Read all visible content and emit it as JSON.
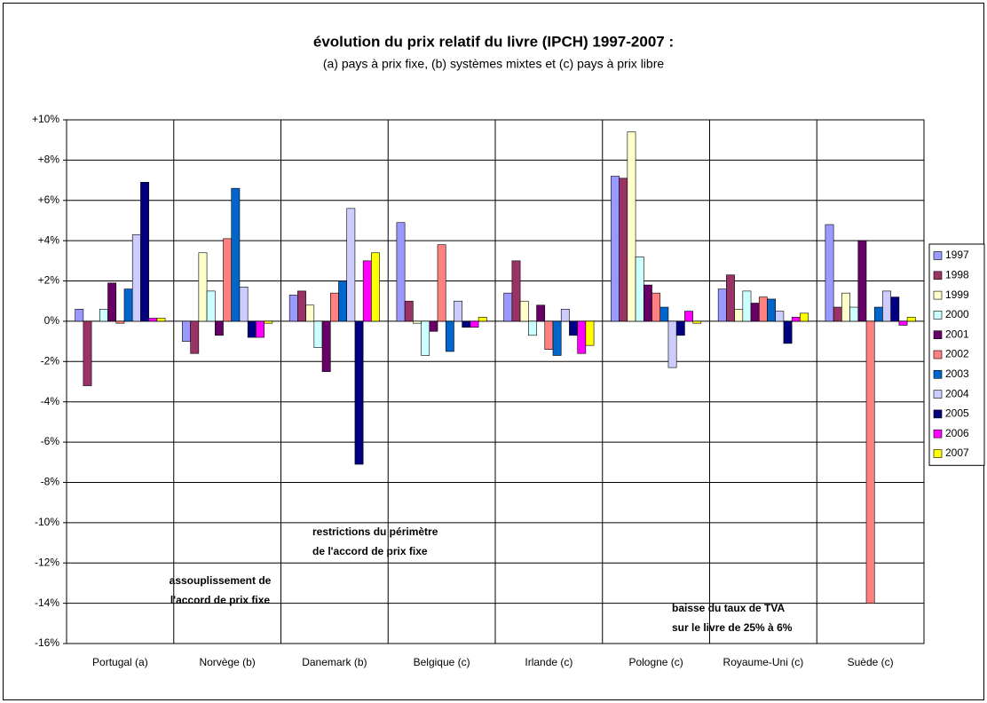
{
  "chart_data": {
    "type": "bar",
    "title": "évolution du prix relatif du livre (IPCH) 1997-2007 :",
    "subtitle": "(a) pays à prix fixe, (b) systèmes mixtes et (c) pays à prix libre",
    "categories": [
      "Portugal (a)",
      "Norvège (b)",
      "Danemark (b)",
      "Belgique (c)",
      "Irlande (c)",
      "Pologne (c)",
      "Royaume-Uni (c)",
      "Suède (c)"
    ],
    "series": [
      {
        "name": "1997",
        "color": "#9999ff",
        "values": [
          0.6,
          -1.0,
          1.3,
          4.9,
          1.4,
          7.2,
          1.6,
          4.8
        ]
      },
      {
        "name": "1998",
        "color": "#993366",
        "values": [
          -3.2,
          -1.6,
          1.5,
          1.0,
          3.0,
          7.1,
          2.3,
          0.7
        ]
      },
      {
        "name": "1999",
        "color": "#ffffcc",
        "values": [
          0,
          3.4,
          0.8,
          -0.1,
          1.0,
          9.4,
          0.6,
          1.4
        ]
      },
      {
        "name": "2000",
        "color": "#ccffff",
        "values": [
          0.6,
          1.5,
          -1.3,
          -1.7,
          -0.7,
          3.2,
          1.5,
          0.7
        ]
      },
      {
        "name": "2001",
        "color": "#660066",
        "values": [
          1.9,
          -0.7,
          -2.5,
          -0.5,
          0.8,
          1.8,
          0.9,
          4.0
        ]
      },
      {
        "name": "2002",
        "color": "#ff8080",
        "values": [
          -0.1,
          4.1,
          1.4,
          3.8,
          -1.4,
          1.4,
          1.2,
          -14.0
        ]
      },
      {
        "name": "2003",
        "color": "#0066cc",
        "values": [
          1.6,
          6.6,
          2.0,
          -1.5,
          -1.7,
          0.7,
          1.1,
          0.7
        ]
      },
      {
        "name": "2004",
        "color": "#ccccff",
        "values": [
          4.3,
          1.7,
          5.6,
          1.0,
          0.6,
          -2.3,
          0.5,
          1.5
        ]
      },
      {
        "name": "2005",
        "color": "#000080",
        "values": [
          6.9,
          -0.8,
          -7.1,
          -0.3,
          -0.7,
          -0.7,
          -1.1,
          1.2
        ]
      },
      {
        "name": "2006",
        "color": "#ff00ff",
        "values": [
          0.15,
          -0.8,
          3.0,
          -0.3,
          -1.6,
          0.5,
          0.2,
          -0.2
        ]
      },
      {
        "name": "2007",
        "color": "#ffff00",
        "values": [
          0.15,
          -0.1,
          3.4,
          0.2,
          -1.2,
          -0.1,
          0.4,
          0.2
        ]
      }
    ],
    "ylim": [
      -16,
      10
    ],
    "yticks": [
      {
        "value": -16,
        "label": "-16%"
      },
      {
        "value": -14,
        "label": "-14%"
      },
      {
        "value": -12,
        "label": "-12%"
      },
      {
        "value": -10,
        "label": "-10%"
      },
      {
        "value": -8,
        "label": "-8%"
      },
      {
        "value": -6,
        "label": "-6%"
      },
      {
        "value": -4,
        "label": "-4%"
      },
      {
        "value": -2,
        "label": "-2%"
      },
      {
        "value": 0,
        "label": "0%"
      },
      {
        "value": 2,
        "label": "+2%"
      },
      {
        "value": 4,
        "label": "+4%"
      },
      {
        "value": 6,
        "label": "+6%"
      },
      {
        "value": 8,
        "label": "+8%"
      },
      {
        "value": 10,
        "label": "+10%"
      }
    ],
    "grid": true,
    "legend": "right",
    "annotations": [
      {
        "lines": [
          "assouplissement de",
          "l'accord de prix fixe"
        ]
      },
      {
        "lines": [
          "restrictions du périmètre",
          "de l'accord de prix fixe"
        ]
      },
      {
        "lines": [
          "baisse du taux de TVA",
          "sur le livre de 25% à 6%"
        ]
      }
    ]
  }
}
